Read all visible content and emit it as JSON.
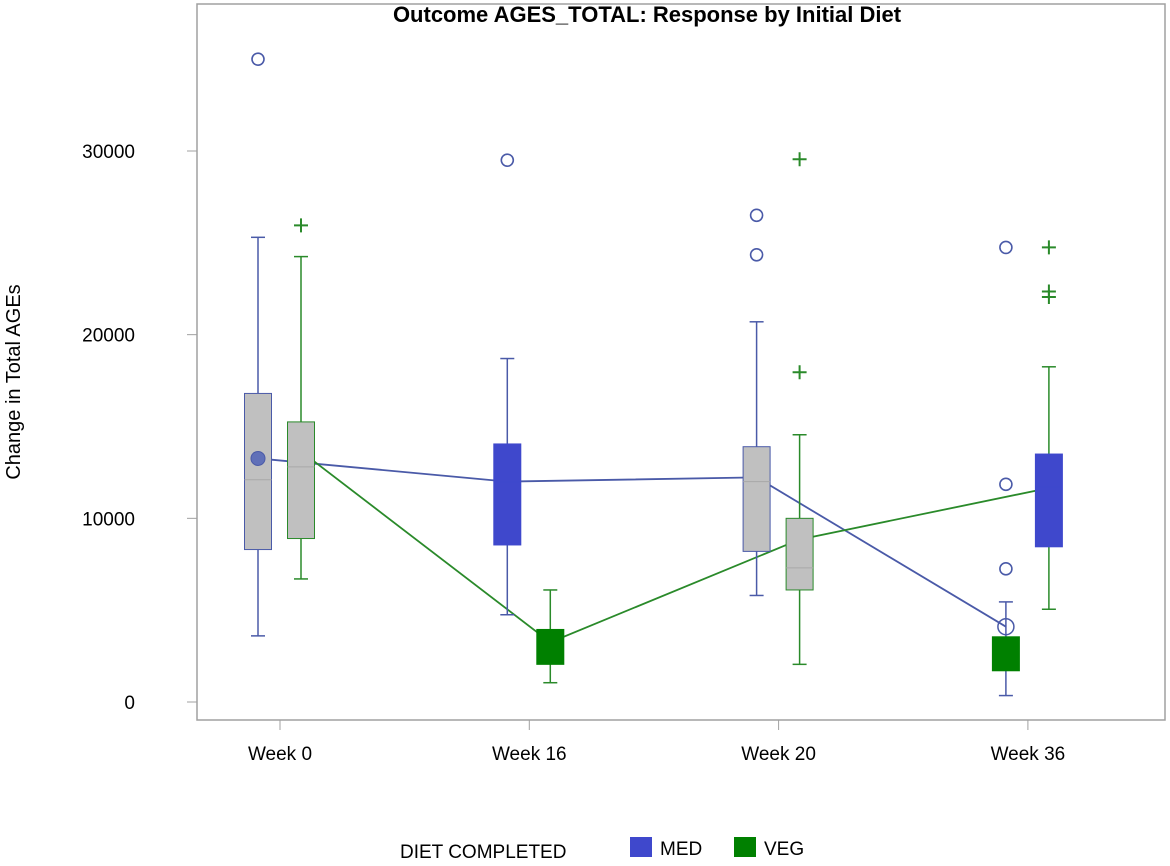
{
  "chart_data": {
    "type": "box",
    "title": "Outcome AGES_TOTAL: Response by Initial Diet",
    "xlabel": "",
    "ylabel": "Change in Total AGEs",
    "categories": [
      "Week 0",
      "Week 16",
      "Week 20",
      "Week 36"
    ],
    "ylim": [
      -1000,
      38000
    ],
    "yticks": [
      0,
      10000,
      20000,
      30000
    ],
    "ytick_labels": [
      "0",
      "10000",
      "20000",
      "30000"
    ],
    "grid": false,
    "legend": {
      "title": "DIET COMPLETED",
      "placement": "bottom",
      "entries": [
        {
          "label": "MED",
          "color": "#3f48cc"
        },
        {
          "label": "VEG",
          "color": "#008000"
        }
      ]
    },
    "colors": {
      "MED_line": "#4a5aa8",
      "VEG_line": "#2a8a2a",
      "gray_fill": "#c0c0c0",
      "MED_fill": "#3f48cc",
      "VEG_fill": "#008000"
    },
    "series": [
      {
        "name": "MED",
        "boxes": [
          {
            "category": "Week 0",
            "min": 3600,
            "q1": 8300,
            "median": 12100,
            "q3": 16800,
            "max": 25300,
            "mean": 13260,
            "outliers": [
              35000
            ],
            "fill": "#c0c0c0"
          },
          {
            "category": "Week 16",
            "min": 4750,
            "q1": 8550,
            "median": 12000,
            "q3": 14050,
            "max": 18700,
            "mean": 12000,
            "outliers": [
              29500
            ],
            "fill": "#3f48cc"
          },
          {
            "category": "Week 20",
            "min": 5800,
            "q1": 8200,
            "median": 12000,
            "q3": 13900,
            "max": 20700,
            "mean": 12230,
            "outliers": [
              26500,
              24350
            ],
            "fill": "#c0c0c0"
          },
          {
            "category": "Week 36",
            "min": 350,
            "q1": 1700,
            "median": 2700,
            "q3": 3550,
            "max": 5450,
            "mean": 4100,
            "outliers": [
              24750,
              11850,
              7250
            ],
            "fill": "#008000"
          }
        ]
      },
      {
        "name": "VEG",
        "boxes": [
          {
            "category": "Week 0",
            "min": 6700,
            "q1": 8900,
            "median": 12800,
            "q3": 15250,
            "max": 24250,
            "mean": 13650,
            "outliers": [
              25950
            ],
            "fill": "#c0c0c0"
          },
          {
            "category": "Week 16",
            "min": 1050,
            "q1": 2050,
            "median": 3250,
            "q3": 3950,
            "max": 6100,
            "mean": 3250,
            "outliers": [],
            "fill": "#008000"
          },
          {
            "category": "Week 20",
            "min": 2050,
            "q1": 6100,
            "median": 7300,
            "q3": 10000,
            "max": 14550,
            "mean": 8850,
            "outliers": [
              29550,
              17950
            ],
            "fill": "#c0c0c0"
          },
          {
            "category": "Week 36",
            "min": 5050,
            "q1": 8450,
            "median": 11700,
            "q3": 13500,
            "max": 18250,
            "mean": 11650,
            "outliers": [
              24750,
              22350,
              22050
            ],
            "fill": "#3f48cc"
          }
        ]
      }
    ]
  }
}
